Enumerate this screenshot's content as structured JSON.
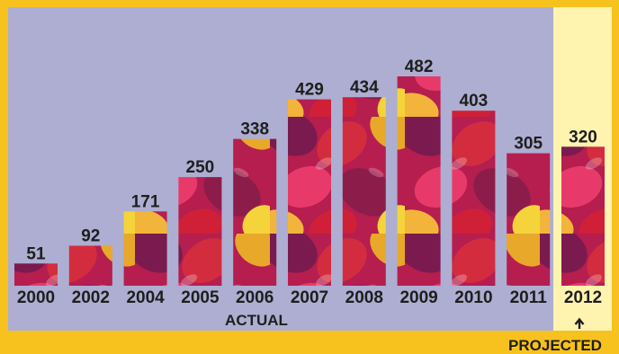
{
  "chart_data": {
    "type": "bar",
    "categories": [
      "2000",
      "2002",
      "2004",
      "2005",
      "2006",
      "2007",
      "2008",
      "2009",
      "2010",
      "2011",
      "2012"
    ],
    "values": [
      51,
      92,
      171,
      250,
      338,
      429,
      434,
      482,
      403,
      305,
      320
    ],
    "projected_categories": [
      "2012"
    ],
    "ylim": [
      0,
      482
    ],
    "actual_label": "ACTUAL",
    "projected_label": "PROJECTED",
    "colors": {
      "frame": "#f7c21e",
      "actual_panel": "#adaed1",
      "projected_panel": "#fff3b0",
      "text": "#1e1e1e"
    }
  }
}
